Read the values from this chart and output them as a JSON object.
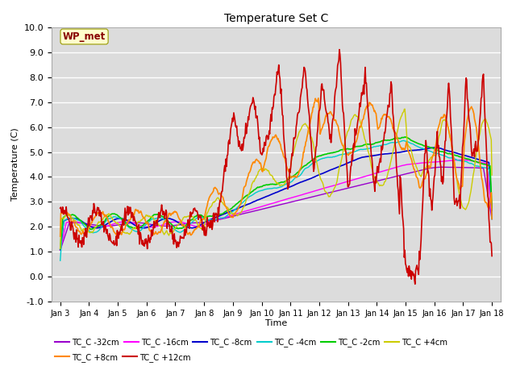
{
  "title": "Temperature Set C",
  "xlabel": "Time",
  "ylabel": "Temperature (C)",
  "ylim": [
    -1.0,
    10.0
  ],
  "yticks": [
    -1.0,
    0.0,
    1.0,
    2.0,
    3.0,
    4.0,
    5.0,
    6.0,
    7.0,
    8.0,
    9.0,
    10.0
  ],
  "date_labels": [
    "Jan 3",
    "Jan 4",
    "Jan 5",
    "Jan 6",
    "Jan 7",
    "Jan 8",
    "Jan 9",
    "Jan 10",
    "Jan 11",
    "Jan 12",
    "Jan 13",
    "Jan 14",
    "Jan 15",
    "Jan 16",
    "Jan 17",
    "Jan 18"
  ],
  "series": [
    {
      "name": "TC_C -32cm",
      "color": "#9900cc"
    },
    {
      "name": "TC_C -16cm",
      "color": "#ff00ff"
    },
    {
      "name": "TC_C -8cm",
      "color": "#0000cc"
    },
    {
      "name": "TC_C -4cm",
      "color": "#00cccc"
    },
    {
      "name": "TC_C -2cm",
      "color": "#00cc00"
    },
    {
      "name": "TC_C +4cm",
      "color": "#cccc00"
    },
    {
      "name": "TC_C +8cm",
      "color": "#ff8800"
    },
    {
      "name": "TC_C +12cm",
      "color": "#cc0000"
    }
  ],
  "wp_met_box_facecolor": "#ffffcc",
  "wp_met_box_edgecolor": "#999900",
  "wp_met_text_color": "#880000",
  "plot_bg_color": "#dcdcdc",
  "grid_color": "#ffffff",
  "fig_bg_color": "#ffffff",
  "n_points": 720,
  "legend_ncol1": 6,
  "legend_ncol2": 2
}
